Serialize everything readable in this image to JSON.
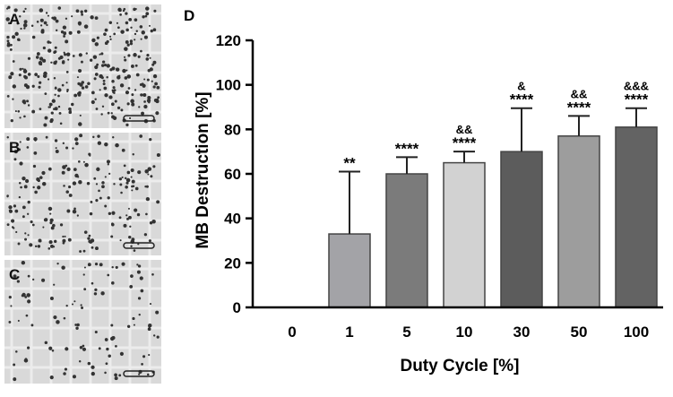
{
  "panels": {
    "labels": [
      "A",
      "B",
      "C"
    ]
  },
  "chart_data": {
    "type": "bar",
    "title": "D",
    "x_label": "Duty Cycle [%]",
    "y_label": "MB Destruction [%]",
    "categories": [
      "0",
      "1",
      "5",
      "10",
      "30",
      "50",
      "100"
    ],
    "values": [
      0,
      33,
      60,
      65,
      70,
      77,
      81
    ],
    "errors": [
      0,
      28,
      7.5,
      5,
      19.5,
      9,
      8.5
    ],
    "annotations": [
      [],
      [
        "**"
      ],
      [
        "****"
      ],
      [
        "&&",
        "****"
      ],
      [
        "&",
        "****"
      ],
      [
        "&&",
        "****"
      ],
      [
        "&&&",
        "****"
      ]
    ],
    "colors": [
      "#8c8c8c",
      "#a3a3a7",
      "#7b7b7b",
      "#d2d2d2",
      "#5c5c5c",
      "#9d9d9d",
      "#636363"
    ],
    "ylim": [
      0,
      120
    ],
    "yticks": [
      0,
      20,
      40,
      60,
      80,
      100,
      120
    ]
  }
}
